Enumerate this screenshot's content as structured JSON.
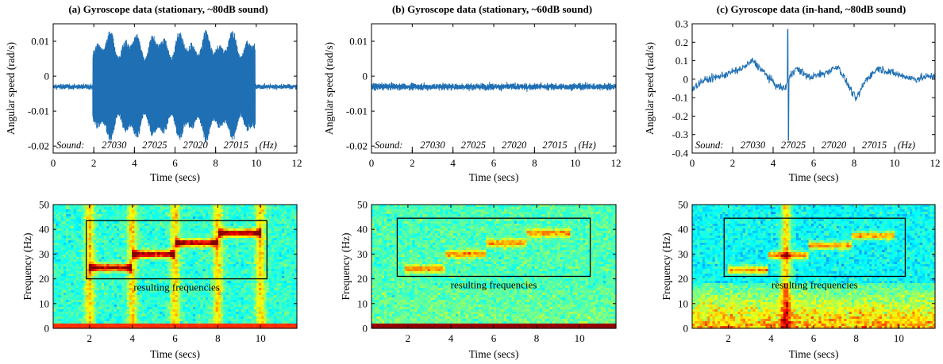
{
  "figure": {
    "subplots": [
      {
        "id": "a",
        "title": "(a) Gyroscope data (stationary, ~80dB sound)"
      },
      {
        "id": "b",
        "title": "(b) Gyroscope data (stationary, ~60dB sound)"
      },
      {
        "id": "c",
        "title": "(c) Gyroscope data (in-hand, ~80dB sound)"
      }
    ],
    "sound_annotation": {
      "prefix": "Sound:",
      "frequencies": [
        "27030",
        "27025",
        "27020",
        "27015"
      ],
      "unit": "(Hz)"
    },
    "box_label": "resulting frequencies",
    "colors": {
      "signal": "#1f6fb4",
      "box": "#000000"
    }
  },
  "chart_data": [
    {
      "type": "line",
      "panel": "top-a",
      "xlabel": "Time (secs)",
      "ylabel": "Angular speed (rad/s)",
      "xlim": [
        0,
        12
      ],
      "ylim": [
        -0.022,
        0.015
      ],
      "xticks": [
        0,
        2,
        4,
        6,
        8,
        10,
        12
      ],
      "xtick_labels": [
        "0",
        "2",
        "4",
        "6",
        "8",
        "10",
        "12"
      ],
      "yticks": [
        -0.02,
        -0.01,
        0,
        0.01
      ],
      "ytick_labels": [
        "-0.02",
        "-0.01",
        "0",
        "0.01"
      ],
      "baseline": -0.003,
      "noise": 0.0006,
      "bursts": [
        {
          "start": 1.95,
          "end": 9.95,
          "low": -0.019,
          "high": 0.0135
        }
      ],
      "grid": false
    },
    {
      "type": "line",
      "panel": "top-b",
      "xlabel": "Time (secs)",
      "ylabel": "Angular speed (rad/s)",
      "xlim": [
        0,
        12
      ],
      "ylim": [
        -0.022,
        0.015
      ],
      "xticks": [
        0,
        2,
        4,
        6,
        8,
        10,
        12
      ],
      "xtick_labels": [
        "0",
        "2",
        "4",
        "6",
        "8",
        "10",
        "12"
      ],
      "yticks": [
        -0.02,
        -0.01,
        0,
        0.01
      ],
      "ytick_labels": [
        "-0.02",
        "-0.01",
        "0",
        "0.01"
      ],
      "baseline": -0.003,
      "noise": 0.0008,
      "bursts": [],
      "grid": false
    },
    {
      "type": "line",
      "panel": "top-c",
      "xlabel": "Time (secs)",
      "ylabel": "Angular speed (rad/s)",
      "xlim": [
        0,
        12
      ],
      "ylim": [
        -0.4,
        0.3
      ],
      "xticks": [
        0,
        2,
        4,
        6,
        8,
        10,
        12
      ],
      "xtick_labels": [
        "0",
        "2",
        "4",
        "6",
        "8",
        "10",
        "12"
      ],
      "yticks": [
        -0.4,
        -0.3,
        -0.2,
        -0.1,
        0,
        0.1,
        0.2,
        0.3
      ],
      "ytick_labels": [
        "-0.4",
        "-0.3",
        "-0.2",
        "-0.1",
        "0",
        "0.1",
        "0.2",
        "0.3"
      ],
      "envelope_t": [
        0,
        0.5,
        1.5,
        2.5,
        3.0,
        3.6,
        4.2,
        4.6,
        4.75,
        5.1,
        5.8,
        6.5,
        7.2,
        7.8,
        8.1,
        8.6,
        9.2,
        10,
        11,
        12
      ],
      "envelope_v": [
        -0.05,
        -0.01,
        0.02,
        0.06,
        0.1,
        0.03,
        -0.04,
        -0.05,
        0.0,
        0.06,
        0.01,
        0.03,
        0.07,
        -0.05,
        -0.11,
        0.0,
        0.06,
        0.03,
        0.0,
        0.02
      ],
      "spike": {
        "t": 4.72,
        "high": 0.27,
        "low": -0.33
      },
      "noise": 0.018,
      "grid": false
    },
    {
      "type": "heatmap",
      "panel": "bottom-a",
      "xlabel": "Time (secs)",
      "ylabel": "Frequency (Hz)",
      "xlim": [
        0.3,
        11.7
      ],
      "ylim": [
        0,
        50
      ],
      "xticks": [
        2,
        4,
        6,
        8,
        10
      ],
      "xtick_labels": [
        "2",
        "4",
        "6",
        "8",
        "10"
      ],
      "yticks": [
        0,
        10,
        20,
        30,
        40,
        50
      ],
      "ytick_labels": [
        "0",
        "10",
        "20",
        "30",
        "40",
        "50"
      ],
      "tones": [
        {
          "t0": 2,
          "t1": 4,
          "f": 24.5
        },
        {
          "t0": 4,
          "t1": 6,
          "f": 30
        },
        {
          "t0": 6,
          "t1": 8,
          "f": 34.5
        },
        {
          "t0": 8,
          "t1": 10,
          "f": 38.5
        }
      ],
      "tone_strength": 1.0,
      "dc_band": 1.5,
      "dc_level": 0.82,
      "transients": [
        2,
        4,
        6,
        8,
        10
      ],
      "transient_strength": 0.25,
      "low_freq_energy": 0,
      "box": {
        "t0": 1.85,
        "t1": 10.3,
        "f0": 20,
        "f1": 43.5
      },
      "background": 0.42
    },
    {
      "type": "heatmap",
      "panel": "bottom-b",
      "xlabel": "Time (secs)",
      "ylabel": "Frequency (Hz)",
      "xlim": [
        0.3,
        11.7
      ],
      "ylim": [
        0,
        50
      ],
      "xticks": [
        2,
        4,
        6,
        8,
        10
      ],
      "xtick_labels": [
        "2",
        "4",
        "6",
        "8",
        "10"
      ],
      "yticks": [
        0,
        10,
        20,
        30,
        40,
        50
      ],
      "ytick_labels": [
        "0",
        "10",
        "20",
        "30",
        "40",
        "50"
      ],
      "tones": [
        {
          "t0": 1.8,
          "t1": 3.7,
          "f": 24
        },
        {
          "t0": 3.7,
          "t1": 5.6,
          "f": 30
        },
        {
          "t0": 5.6,
          "t1": 7.6,
          "f": 34.5
        },
        {
          "t0": 7.6,
          "t1": 9.6,
          "f": 38.5
        }
      ],
      "tone_strength": 0.55,
      "dc_band": 1.5,
      "dc_level": 0.97,
      "transients": [],
      "transient_strength": 0,
      "low_freq_energy": 0.05,
      "box": {
        "t0": 1.5,
        "t1": 10.5,
        "f0": 21,
        "f1": 44.5
      },
      "background": 0.45
    },
    {
      "type": "heatmap",
      "panel": "bottom-c",
      "xlabel": "Time (secs)",
      "ylabel": "Frequency (Hz)",
      "xlim": [
        0.3,
        11.7
      ],
      "ylim": [
        0,
        50
      ],
      "xticks": [
        2,
        4,
        6,
        8,
        10
      ],
      "xtick_labels": [
        "2",
        "4",
        "6",
        "8",
        "10"
      ],
      "yticks": [
        0,
        10,
        20,
        30,
        40,
        50
      ],
      "ytick_labels": [
        "0",
        "10",
        "20",
        "30",
        "40",
        "50"
      ],
      "tones": [
        {
          "t0": 2,
          "t1": 3.9,
          "f": 23.5
        },
        {
          "t0": 3.9,
          "t1": 5.8,
          "f": 29.5
        },
        {
          "t0": 5.8,
          "t1": 7.8,
          "f": 33.5
        },
        {
          "t0": 7.8,
          "t1": 9.8,
          "f": 37.5
        }
      ],
      "tone_strength": 0.65,
      "dc_band": 0,
      "dc_level": 0,
      "transients": [
        4.7
      ],
      "transient_strength": 0.3,
      "low_freq_energy": 0.45,
      "box": {
        "t0": 1.8,
        "t1": 10.3,
        "f0": 21,
        "f1": 44.5
      },
      "background": 0.38
    }
  ]
}
